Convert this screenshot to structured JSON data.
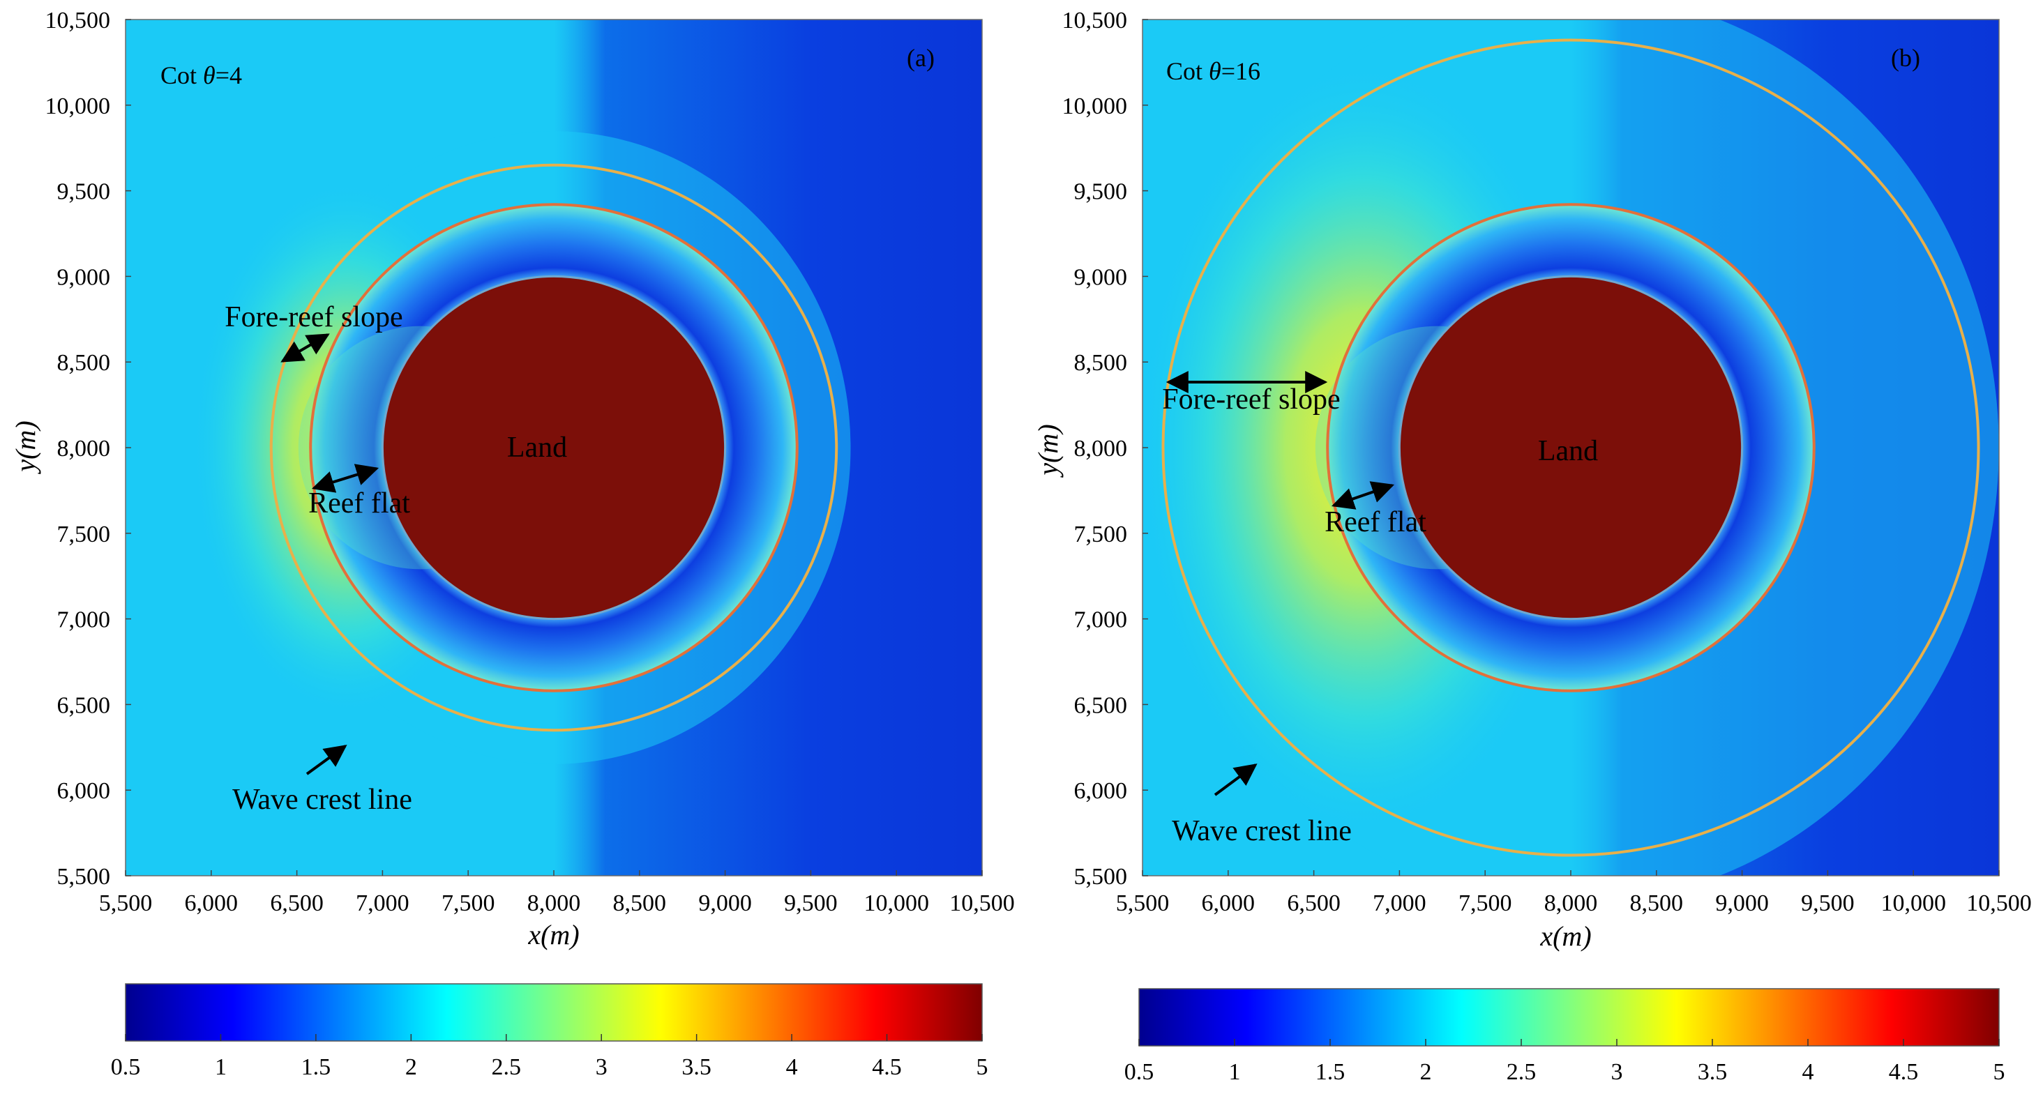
{
  "chart_data": [
    {
      "type": "heatmap",
      "panel_label": "(a)",
      "cot_prefix": "Cot ",
      "cot_symbol": "θ",
      "cot_value": "=4",
      "xlabel": "x(m)",
      "ylabel": "y(m)",
      "xlim": [
        5500,
        10500
      ],
      "ylim": [
        5500,
        10500
      ],
      "x_ticks": [
        5500,
        6000,
        6500,
        7000,
        7500,
        8000,
        8500,
        9000,
        9500,
        10000,
        10500
      ],
      "y_ticks": [
        5500,
        6000,
        6500,
        7000,
        7500,
        8000,
        8500,
        9000,
        9500,
        10000,
        10500
      ],
      "x_tick_labels": [
        "5,500",
        "6,000",
        "6,500",
        "7,000",
        "7,500",
        "8,000",
        "8,500",
        "9,000",
        "9,500",
        "10,000",
        "10,500"
      ],
      "y_tick_labels": [
        "5,500",
        "6,000",
        "6,500",
        "7,000",
        "7,500",
        "8,000",
        "8,500",
        "9,000",
        "9,500",
        "10,000",
        "10,500"
      ],
      "island_center": [
        8000,
        8000
      ],
      "land_radius": 1000,
      "reef_flat_radius": 1420,
      "slope_toe_radius": 1650,
      "colorbar": {
        "ticks": [
          0.5,
          1,
          1.5,
          2,
          2.5,
          3,
          3.5,
          4,
          4.5,
          5
        ],
        "tick_labels": [
          "0.5",
          "1",
          "1.5",
          "2",
          "2.5",
          "3",
          "3.5",
          "4",
          "4.5",
          "5"
        ],
        "colors": [
          "#00008f",
          "#0000ff",
          "#0080ff",
          "#00ffff",
          "#80ff80",
          "#ffff00",
          "#ff8000",
          "#ff0000",
          "#800000"
        ]
      },
      "annotations": {
        "land": "Land",
        "fore_reef": "Fore-reef slope",
        "reef_flat": "Reef flat",
        "wave_crest": "Wave crest line"
      }
    },
    {
      "type": "heatmap",
      "panel_label": "(b)",
      "cot_prefix": "Cot ",
      "cot_symbol": "θ",
      "cot_value": "=16",
      "xlabel": "x(m)",
      "ylabel": "y(m)",
      "xlim": [
        5500,
        10500
      ],
      "ylim": [
        5500,
        10500
      ],
      "x_ticks": [
        5500,
        6000,
        6500,
        7000,
        7500,
        8000,
        8500,
        9000,
        9500,
        10000,
        10500
      ],
      "y_ticks": [
        5500,
        6000,
        6500,
        7000,
        7500,
        8000,
        8500,
        9000,
        9500,
        10000,
        10500
      ],
      "x_tick_labels": [
        "5,500",
        "6,000",
        "6,500",
        "7,000",
        "7,500",
        "8,000",
        "8,500",
        "9,000",
        "9,500",
        "10,000",
        "10,500"
      ],
      "y_tick_labels": [
        "5,500",
        "6,000",
        "6,500",
        "7,000",
        "7,500",
        "8,000",
        "8,500",
        "9,000",
        "9,500",
        "10,000",
        "10,500"
      ],
      "island_center": [
        8000,
        8000
      ],
      "land_radius": 1000,
      "reef_flat_radius": 1420,
      "slope_toe_radius": 2380,
      "colorbar": {
        "ticks": [
          0.5,
          1,
          1.5,
          2,
          2.5,
          3,
          3.5,
          4,
          4.5,
          5
        ],
        "tick_labels": [
          "0.5",
          "1",
          "1.5",
          "2",
          "2.5",
          "3",
          "3.5",
          "4",
          "4.5",
          "5"
        ],
        "colors": [
          "#00008f",
          "#0000ff",
          "#0080ff",
          "#00ffff",
          "#80ff80",
          "#ffff00",
          "#ff8000",
          "#ff0000",
          "#800000"
        ]
      },
      "annotations": {
        "land": "Land",
        "fore_reef": "Fore-reef slope",
        "reef_flat": "Reef flat",
        "wave_crest": "Wave crest line"
      }
    }
  ]
}
